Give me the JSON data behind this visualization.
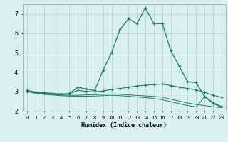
{
  "xlabel": "Humidex (Indice chaleur)",
  "background_color": "#daf0f0",
  "grid_color": "#c0d8d8",
  "line_color": "#1a7a6a",
  "x_values": [
    0,
    1,
    2,
    3,
    4,
    5,
    6,
    7,
    8,
    9,
    10,
    11,
    12,
    13,
    14,
    15,
    16,
    17,
    18,
    19,
    20,
    21,
    22,
    23
  ],
  "series1": [
    3.0,
    2.95,
    2.9,
    2.87,
    2.85,
    2.88,
    3.22,
    3.12,
    3.05,
    4.1,
    5.0,
    6.2,
    6.75,
    6.5,
    7.3,
    6.5,
    6.5,
    5.1,
    4.3,
    3.5,
    3.45,
    2.75,
    2.42,
    2.22
  ],
  "series2": [
    3.05,
    2.97,
    2.93,
    2.9,
    2.87,
    2.88,
    3.05,
    3.0,
    2.98,
    3.02,
    3.1,
    3.15,
    3.22,
    3.28,
    3.32,
    3.35,
    3.38,
    3.3,
    3.22,
    3.15,
    3.08,
    2.95,
    2.8,
    2.7
  ],
  "series3": [
    3.0,
    2.93,
    2.88,
    2.85,
    2.82,
    2.8,
    2.8,
    2.82,
    2.83,
    2.85,
    2.87,
    2.85,
    2.82,
    2.79,
    2.77,
    2.74,
    2.7,
    2.6,
    2.5,
    2.4,
    2.33,
    2.27,
    2.21,
    2.17
  ],
  "series4": [
    3.0,
    2.9,
    2.85,
    2.81,
    2.78,
    2.76,
    2.75,
    2.75,
    2.76,
    2.78,
    2.8,
    2.78,
    2.75,
    2.71,
    2.68,
    2.63,
    2.57,
    2.47,
    2.37,
    2.27,
    2.2,
    2.72,
    2.38,
    2.18
  ],
  "ylim": [
    2.0,
    7.5
  ],
  "yticks": [
    2,
    3,
    4,
    5,
    6,
    7
  ],
  "xlim": [
    -0.5,
    23.5
  ]
}
